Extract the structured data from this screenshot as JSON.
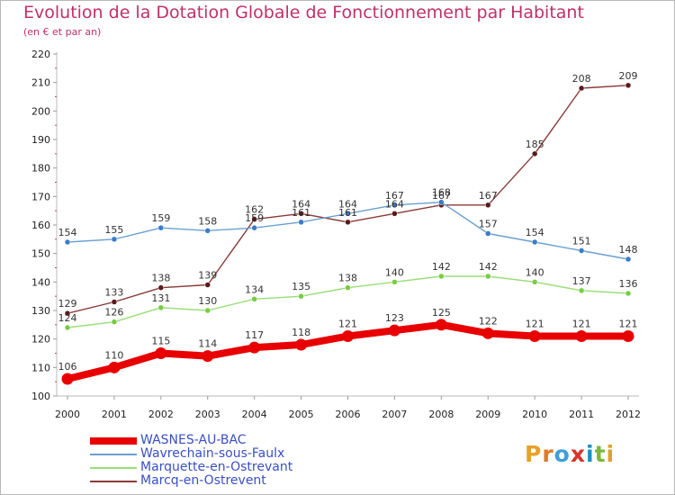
{
  "title": "Evolution de la Dotation Globale de Fonctionnement par Habitant",
  "subtitle": "(en € et par an)",
  "logo": {
    "text": "Proxiti",
    "letters": [
      "P",
      "r",
      "o",
      "x",
      "i",
      "t",
      "i"
    ],
    "colors": [
      "#e8a02a",
      "#e07a28",
      "#3ea0d8",
      "#d8342a",
      "#1e90c8",
      "#7ab83a",
      "#e0a030"
    ]
  },
  "chart_data": {
    "type": "line",
    "title": "Evolution de la Dotation Globale de Fonctionnement par Habitant",
    "subtitle": "(en € et par an)",
    "xlabel": "",
    "ylabel": "",
    "x": [
      "2000",
      "2001",
      "2002",
      "2003",
      "2004",
      "2005",
      "2006",
      "2007",
      "2008",
      "2009",
      "2010",
      "2011",
      "2012"
    ],
    "ylim": [
      100,
      220
    ],
    "yticks": [
      100,
      110,
      120,
      130,
      140,
      150,
      160,
      170,
      180,
      190,
      200,
      210,
      220
    ],
    "legend_position": "bottom-left",
    "series": [
      {
        "name": "WASNES-AU-BAC",
        "color": "#e80000",
        "marker_color": "#e80000",
        "values": [
          106,
          110,
          115,
          114,
          117,
          118,
          121,
          123,
          125,
          122,
          121,
          121,
          121
        ]
      },
      {
        "name": "Wavrechain-sous-Faulx",
        "color": "#6aa0d0",
        "marker_color": "#3a7cc8",
        "values": [
          154,
          155,
          159,
          158,
          159,
          161,
          164,
          167,
          168,
          157,
          154,
          151,
          148
        ]
      },
      {
        "name": "Marquette-en-Ostrevant",
        "color": "#99dd77",
        "marker_color": "#77cc44",
        "values": [
          124,
          126,
          131,
          130,
          134,
          135,
          138,
          140,
          142,
          142,
          140,
          137,
          136
        ]
      },
      {
        "name": "Marcq-en-Ostrevent",
        "color": "#8b3a3a",
        "marker_color": "#5a1a1a",
        "values": [
          129,
          133,
          138,
          139,
          162,
          164,
          161,
          164,
          167,
          167,
          185,
          208,
          209
        ]
      }
    ]
  }
}
